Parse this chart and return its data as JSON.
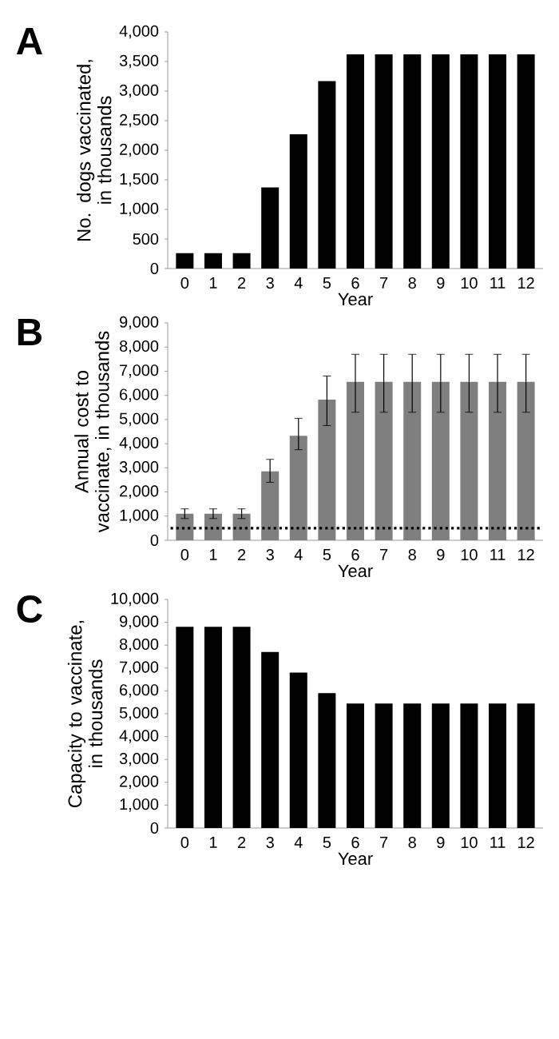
{
  "chart_data": [
    {
      "type": "bar",
      "title": "A",
      "xlabel": "Year",
      "ylabel": "No. dogs vaccinated, in thousands",
      "categories": [
        "0",
        "1",
        "2",
        "3",
        "4",
        "5",
        "6",
        "7",
        "8",
        "9",
        "10",
        "11",
        "12"
      ],
      "values": [
        260,
        260,
        260,
        1370,
        2270,
        3170,
        3620,
        3620,
        3620,
        3620,
        3620,
        3620,
        3620
      ],
      "color": "#000000",
      "ylim": [
        0,
        4000
      ],
      "yticks": [
        0,
        500,
        {
          "value": 1000,
          "label": "1,000"
        },
        {
          "value": 1500,
          "label": "1,500"
        },
        {
          "value": 2000,
          "label": "2,000"
        },
        {
          "value": 2500,
          "label": "2,500"
        },
        {
          "value": 3000,
          "label": "3,000"
        },
        {
          "value": 3500,
          "label": "3,500"
        },
        {
          "value": 4000,
          "label": "4,000"
        }
      ]
    },
    {
      "type": "bar",
      "title": "B",
      "xlabel": "Year",
      "ylabel": "Annual cost to vaccinate, in thousands",
      "categories": [
        "0",
        "1",
        "2",
        "3",
        "4",
        "5",
        "6",
        "7",
        "8",
        "9",
        "10",
        "11",
        "12"
      ],
      "values": [
        1100,
        1100,
        1100,
        2850,
        4330,
        5820,
        6560,
        6560,
        6560,
        6560,
        6560,
        6560,
        6560
      ],
      "color": "#7f7f7f",
      "errors": [
        [
          900,
          1300
        ],
        [
          900,
          1300
        ],
        [
          900,
          1300
        ],
        [
          2400,
          3350
        ],
        [
          3750,
          5050
        ],
        [
          4750,
          6800
        ],
        [
          5300,
          7700
        ],
        [
          5300,
          7700
        ],
        [
          5300,
          7700
        ],
        [
          5300,
          7700
        ],
        [
          5300,
          7700
        ],
        [
          5300,
          7700
        ],
        [
          5300,
          7700
        ]
      ],
      "ref_lines": [
        {
          "axis": "y",
          "value": 500,
          "color": "#000000",
          "line_style": "dotted"
        }
      ],
      "ylim": [
        0,
        9000
      ],
      "yticks": [
        0,
        {
          "value": 1000,
          "label": "1,000"
        },
        {
          "value": 2000,
          "label": "2,000"
        },
        {
          "value": 3000,
          "label": "3,000"
        },
        {
          "value": 4000,
          "label": "4,000"
        },
        {
          "value": 5000,
          "label": "5,000"
        },
        {
          "value": 6000,
          "label": "6,000"
        },
        {
          "value": 7000,
          "label": "7,000"
        },
        {
          "value": 8000,
          "label": "8,000"
        },
        {
          "value": 9000,
          "label": "9,000"
        }
      ]
    },
    {
      "type": "bar",
      "title": "C",
      "xlabel": "Year",
      "ylabel": "Capacity to vaccinate, in thousands",
      "categories": [
        "0",
        "1",
        "2",
        "3",
        "4",
        "5",
        "6",
        "7",
        "8",
        "9",
        "10",
        "11",
        "12"
      ],
      "values": [
        8800,
        8800,
        8800,
        7700,
        6800,
        5900,
        5450,
        5450,
        5450,
        5450,
        5450,
        5450,
        5450
      ],
      "color": "#000000",
      "ylim": [
        0,
        10000
      ],
      "yticks": [
        0,
        {
          "value": 1000,
          "label": "1,000"
        },
        {
          "value": 2000,
          "label": "2,000"
        },
        {
          "value": 3000,
          "label": "3,000"
        },
        {
          "value": 4000,
          "label": "4,000"
        },
        {
          "value": 5000,
          "label": "5,000"
        },
        {
          "value": 6000,
          "label": "6,000"
        },
        {
          "value": 7000,
          "label": "7,000"
        },
        {
          "value": 8000,
          "label": "8,000"
        },
        {
          "value": 9000,
          "label": "9,000"
        },
        {
          "value": 10000,
          "label": "10,000"
        }
      ]
    }
  ]
}
